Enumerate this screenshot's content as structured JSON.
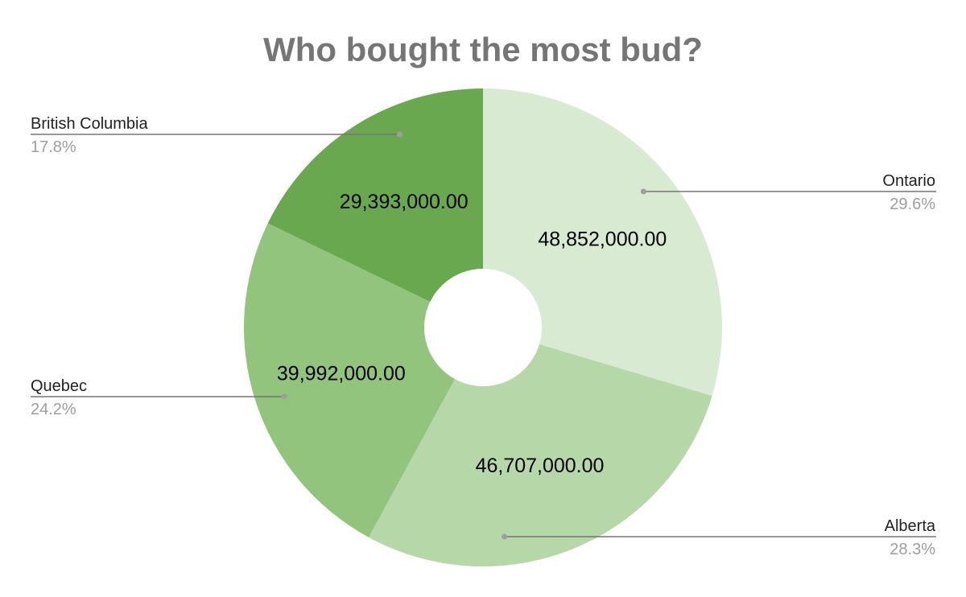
{
  "chart_data": {
    "type": "pie",
    "subtype": "donut",
    "title": "Who bought the most bud?",
    "categories": [
      "Ontario",
      "Alberta",
      "Quebec",
      "British Columbia"
    ],
    "values": [
      48852000,
      46707000,
      39992000,
      29393000
    ],
    "value_labels": [
      "48,852,000.00",
      "46,707,000.00",
      "39,992,000.00",
      "29,393,000.00"
    ],
    "percent_labels": [
      "29.6%",
      "28.3%",
      "24.2%",
      "17.8%"
    ],
    "colors": [
      "#d9ead3",
      "#b6d7a8",
      "#93c47d",
      "#6aa84f"
    ],
    "legend": "leader-lines"
  }
}
